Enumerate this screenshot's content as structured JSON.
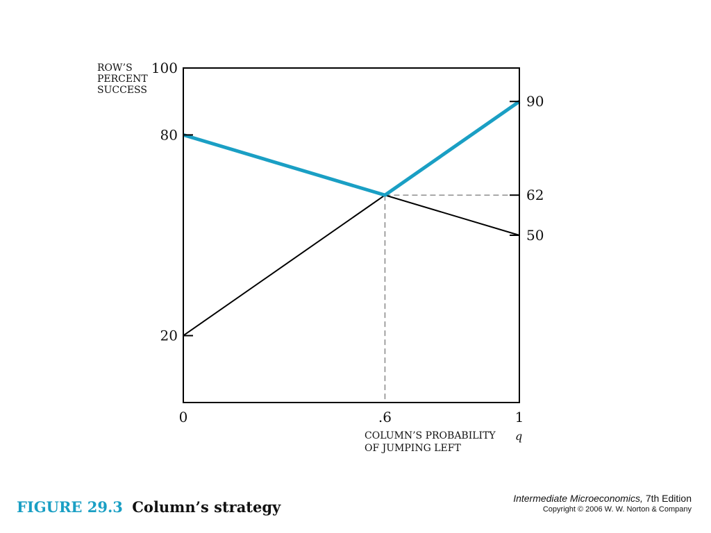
{
  "chart_data": {
    "type": "line",
    "xlabel_lines": [
      "COLUMN’S PROBABILITY",
      "OF JUMPING LEFT"
    ],
    "xvar": "q",
    "ylabel_lines": [
      "ROW’S",
      "PERCENT",
      "SUCCESS"
    ],
    "xlim": [
      0,
      1
    ],
    "ylim": [
      0,
      100
    ],
    "x_ticks": [
      {
        "value": 0,
        "label": "0"
      },
      {
        "value": 0.6,
        "label": ".6"
      },
      {
        "value": 1,
        "label": "1"
      }
    ],
    "y_ticks_left": [
      {
        "value": 100,
        "label": "100"
      },
      {
        "value": 80,
        "label": "80"
      },
      {
        "value": 20,
        "label": "20"
      }
    ],
    "y_ticks_right": [
      {
        "value": 90,
        "label": "90"
      },
      {
        "value": 62,
        "label": "62"
      },
      {
        "value": 50,
        "label": "50"
      }
    ],
    "series": [
      {
        "points": [
          [
            0,
            80
          ],
          [
            1,
            50
          ]
        ],
        "color": "#000000",
        "style": "thin"
      },
      {
        "points": [
          [
            0,
            20
          ],
          [
            1,
            90
          ]
        ],
        "color": "#000000",
        "style": "thin"
      },
      {
        "points": [
          [
            0,
            80
          ],
          [
            0.6,
            62
          ],
          [
            1,
            90
          ]
        ],
        "color": "#1a9fc4",
        "style": "thick"
      }
    ],
    "reference_lines": [
      {
        "from": [
          0.6,
          62
        ],
        "to": [
          0.6,
          0
        ],
        "dash": true
      },
      {
        "from": [
          0.6,
          62
        ],
        "to": [
          1,
          62
        ],
        "dash": true
      }
    ],
    "grid": false
  },
  "caption": {
    "figure_number": "FIGURE 29.3",
    "title": "Column’s strategy"
  },
  "credit": {
    "book_title": "Intermediate Microeconomics,",
    "edition": " 7th Edition",
    "copyright": "Copyright © 2006 W. W. Norton & Company"
  },
  "colors": {
    "accent": "#1a9fc4",
    "ink": "#000000"
  }
}
